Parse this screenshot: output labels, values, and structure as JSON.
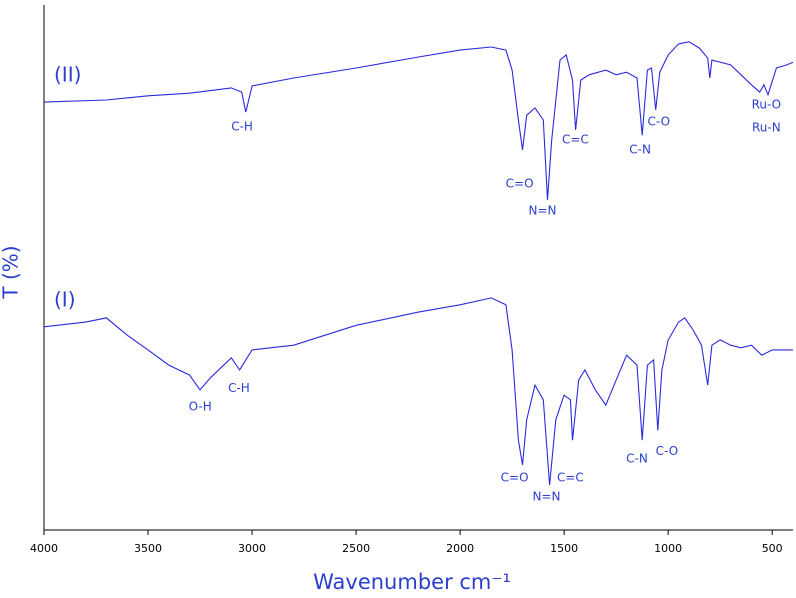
{
  "chart_data": {
    "type": "line",
    "x_label": "Wavenumber cm⁻¹",
    "y_label": "T (%)",
    "xlim": [
      4000,
      400
    ],
    "ylim": [
      0,
      100
    ],
    "xticks": [
      4000,
      3500,
      3000,
      2500,
      2000,
      1500,
      1000,
      500
    ],
    "series": [
      {
        "name": "(II)",
        "color": "#2a2ae0",
        "x": [
          4000,
          3700,
          3500,
          3300,
          3100,
          3050,
          3030,
          3000,
          2800,
          2500,
          2200,
          2000,
          1850,
          1780,
          1750,
          1720,
          1700,
          1680,
          1640,
          1600,
          1580,
          1560,
          1520,
          1490,
          1460,
          1445,
          1420,
          1380,
          1300,
          1250,
          1200,
          1150,
          1125,
          1100,
          1080,
          1060,
          1040,
          1000,
          950,
          900,
          850,
          810,
          800,
          790,
          700,
          650,
          600,
          560,
          540,
          520,
          480,
          430,
          400
        ],
        "values": [
          81.5,
          81.9,
          82.7,
          83.2,
          84.2,
          83.4,
          79.6,
          84.6,
          86.1,
          88.0,
          90.1,
          91.4,
          92.0,
          91.4,
          87.6,
          78.1,
          72.4,
          79.0,
          80.4,
          78.1,
          62.9,
          74.3,
          89.5,
          90.5,
          85.7,
          76.2,
          85.7,
          86.7,
          87.6,
          86.7,
          87.2,
          86.1,
          75.2,
          87.6,
          88.0,
          80.0,
          87.2,
          90.5,
          92.6,
          93.0,
          91.8,
          89.9,
          86.1,
          89.5,
          88.6,
          86.7,
          84.8,
          83.4,
          84.8,
          82.9,
          88.0,
          88.6,
          89.1
        ]
      },
      {
        "name": "(I)",
        "color": "#2a2ae0",
        "x": [
          4000,
          3800,
          3700,
          3600,
          3500,
          3400,
          3300,
          3250,
          3200,
          3100,
          3060,
          3000,
          2800,
          2500,
          2200,
          2000,
          1850,
          1780,
          1750,
          1720,
          1700,
          1680,
          1640,
          1600,
          1570,
          1540,
          1500,
          1470,
          1460,
          1430,
          1400,
          1350,
          1300,
          1250,
          1200,
          1150,
          1125,
          1100,
          1070,
          1050,
          1030,
          1000,
          950,
          920,
          880,
          840,
          810,
          790,
          750,
          700,
          650,
          600,
          550,
          500,
          400
        ],
        "values": [
          38.7,
          39.6,
          40.4,
          37.1,
          34.3,
          31.4,
          29.5,
          26.7,
          29.0,
          32.8,
          30.5,
          34.3,
          35.2,
          39.0,
          41.5,
          42.9,
          44.2,
          42.9,
          34.3,
          17.1,
          12.4,
          21.0,
          27.6,
          24.8,
          8.6,
          21.0,
          25.7,
          24.8,
          17.1,
          28.6,
          30.5,
          26.7,
          23.8,
          28.6,
          33.3,
          31.4,
          17.1,
          31.4,
          32.4,
          19.0,
          30.5,
          36.2,
          39.6,
          40.4,
          38.1,
          35.2,
          27.6,
          35.2,
          36.2,
          35.2,
          34.7,
          35.2,
          33.3,
          34.3,
          34.3
        ]
      }
    ],
    "annotations": [
      {
        "text": "C-H",
        "x": 3048,
        "y": 76.8
      },
      {
        "text": "C=O",
        "x": 1714,
        "y": 65.9
      },
      {
        "text": "N=N",
        "x": 1604,
        "y": 60.8
      },
      {
        "text": "C=C",
        "x": 1446,
        "y": 74.3
      },
      {
        "text": "C-N",
        "x": 1135,
        "y": 72.4
      },
      {
        "text": "C-O",
        "x": 1045,
        "y": 77.7
      },
      {
        "text": "Ru-O",
        "x": 528,
        "y": 81.0
      },
      {
        "text": "Ru-N",
        "x": 528,
        "y": 76.6
      },
      {
        "text": "O-H",
        "x": 3249,
        "y": 23.4
      },
      {
        "text": "C-H",
        "x": 3063,
        "y": 27.0
      },
      {
        "text": "C=O",
        "x": 1738,
        "y": 9.9
      },
      {
        "text": "N=N",
        "x": 1585,
        "y": 6.3
      },
      {
        "text": "C=C",
        "x": 1470,
        "y": 9.9
      },
      {
        "text": "C-N",
        "x": 1150,
        "y": 13.5
      },
      {
        "text": "C-O",
        "x": 1006,
        "y": 15.0
      }
    ]
  }
}
